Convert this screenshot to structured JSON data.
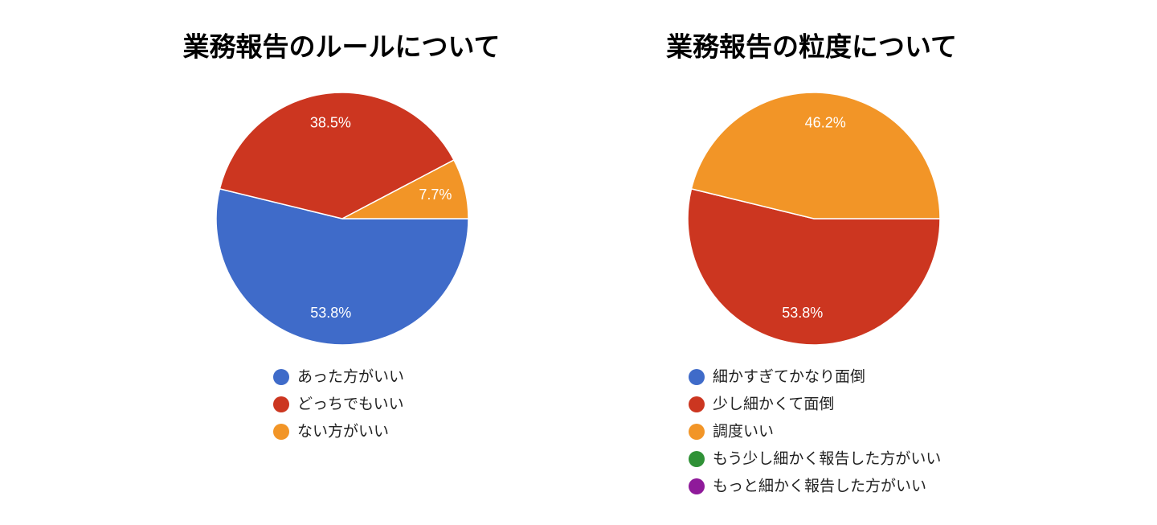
{
  "chart_data": [
    {
      "type": "pie",
      "title": "業務報告のルールについて",
      "categories": [
        "あった方がいい",
        "どっちでもいい",
        "ない方がいい"
      ],
      "values": [
        53.8,
        38.5,
        7.7
      ],
      "value_labels": [
        "53.8%",
        "38.5%",
        "7.7%"
      ],
      "colors": [
        "#3f6bc9",
        "#cc3620",
        "#f29527"
      ]
    },
    {
      "type": "pie",
      "title": "業務報告の粒度について",
      "categories": [
        "細かすぎてかなり面倒",
        "少し細かくて面倒",
        "調度いい",
        "もう少し細かく報告した方がいい",
        "もっと細かく報告した方がいい"
      ],
      "values": [
        0,
        53.8,
        46.2,
        0,
        0
      ],
      "value_labels": [
        null,
        "53.8%",
        "46.2%",
        null,
        null
      ],
      "colors": [
        "#3f6bc9",
        "#cc3620",
        "#f29527",
        "#2f9136",
        "#8f1a9a"
      ]
    }
  ]
}
